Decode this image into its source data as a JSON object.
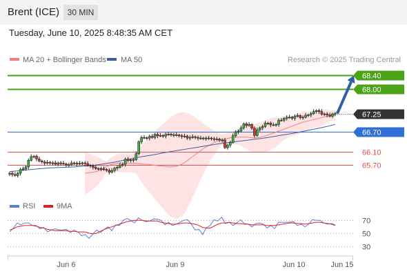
{
  "header": {
    "title": "Brent (ICE)",
    "timeframe": "30 MIN"
  },
  "datetime": "Tuesday, June 10, 2025 8:48:35 AM CET",
  "credit": "Research © 2025 Trading Central",
  "legend": {
    "ma20": {
      "label": "MA 20 + Bollinger Bands",
      "color": "#f08080"
    },
    "ma50": {
      "label": "MA 50",
      "color": "#3a5fa0"
    }
  },
  "rsi_legend": {
    "rsi": {
      "label": "RSI",
      "color": "#5b7fd6"
    },
    "ma9": {
      "label": "9MA",
      "color": "#e02020"
    }
  },
  "levels": [
    {
      "value": 68.4,
      "label": "68.40",
      "kind": "target",
      "color": "#4ca319"
    },
    {
      "value": 68.0,
      "label": "68.00",
      "kind": "target",
      "color": "#4ca319"
    },
    {
      "value": 67.25,
      "label": "67.25",
      "kind": "last",
      "color": "#333333"
    },
    {
      "value": 66.7,
      "label": "66.70",
      "kind": "pivot",
      "color": "#2f6fd6"
    },
    {
      "value": 66.1,
      "label": "66.10",
      "kind": "support",
      "color": "#e05050"
    },
    {
      "value": 65.7,
      "label": "65.70",
      "kind": "support",
      "color": "#e05050"
    }
  ],
  "chart_data": {
    "type": "candlestick",
    "price_axis_range": [
      64.95,
      68.7
    ],
    "x_labels": [
      "Jun 6",
      "Jun 9",
      "Jun 10",
      "Jun 15"
    ],
    "close": [
      65.45,
      65.41,
      65.38,
      65.45,
      65.56,
      65.58,
      65.64,
      65.84,
      65.95,
      65.96,
      65.88,
      65.82,
      65.79,
      65.75,
      65.78,
      65.76,
      65.76,
      65.72,
      65.76,
      65.75,
      65.73,
      65.7,
      65.71,
      65.76,
      65.75,
      65.73,
      65.75,
      65.76,
      65.74,
      65.69,
      65.67,
      65.63,
      65.59,
      65.59,
      65.58,
      65.56,
      65.54,
      65.48,
      65.53,
      65.6,
      65.63,
      65.7,
      65.72,
      65.87,
      65.83,
      65.85,
      65.86,
      66.04,
      66.4,
      66.53,
      66.52,
      66.51,
      66.56,
      66.53,
      66.62,
      66.58,
      66.59,
      66.57,
      66.62,
      66.63,
      66.61,
      66.61,
      66.6,
      66.58,
      66.56,
      66.57,
      66.51,
      66.53,
      66.55,
      66.53,
      66.51,
      66.5,
      66.51,
      66.5,
      66.51,
      66.49,
      66.48,
      66.48,
      66.45,
      66.45,
      66.22,
      66.3,
      66.38,
      66.58,
      66.7,
      66.72,
      66.82,
      66.94,
      66.89,
      66.92,
      66.81,
      66.59,
      66.76,
      66.82,
      66.86,
      66.96,
      66.96,
      66.91,
      66.91,
      66.92,
      67.05,
      67.05,
      67.11,
      67.14,
      67.14,
      67.11,
      67.17,
      67.19,
      67.13,
      67.14,
      67.2,
      67.21,
      67.25,
      67.31,
      67.34,
      67.31,
      67.23,
      67.24,
      67.21,
      67.17,
      67.24,
      67.25
    ],
    "ma20": [
      65.45,
      65.46,
      65.47,
      65.48,
      65.5,
      65.52,
      65.55,
      65.6,
      65.65,
      65.69,
      65.72,
      65.74,
      65.75,
      65.76,
      65.76,
      65.76,
      65.76,
      65.75,
      65.75,
      65.75,
      65.74,
      65.73,
      65.72,
      65.72,
      65.71,
      65.7,
      65.69,
      65.68,
      65.67,
      65.66,
      65.65,
      65.64,
      65.64,
      65.65,
      65.66,
      65.69,
      65.72,
      65.77,
      65.83,
      65.89,
      65.95,
      66.01,
      66.07,
      66.13,
      66.19,
      66.24,
      66.29,
      66.33,
      66.37,
      66.41,
      66.44,
      66.46,
      66.48,
      66.5,
      66.52,
      66.53,
      66.54,
      66.54,
      66.54,
      66.54,
      66.54,
      66.53,
      66.52,
      66.51,
      66.52,
      66.53,
      66.55,
      66.57,
      66.6,
      66.63,
      66.66,
      66.69,
      66.72,
      66.75,
      66.78,
      66.81,
      66.84,
      66.87,
      66.9,
      66.93,
      66.96,
      66.99,
      67.01,
      67.03,
      67.05,
      67.07,
      67.09,
      67.11,
      67.13,
      67.15,
      67.17,
      67.18,
      67.19,
      67.2
    ],
    "ma50": [
      65.5,
      65.52,
      65.55,
      65.57,
      65.59,
      65.61,
      65.62,
      65.63,
      65.64,
      65.66,
      65.68,
      65.71,
      65.75,
      65.79,
      65.84,
      65.89,
      65.94,
      65.98,
      66.02,
      66.07,
      66.11,
      66.15,
      66.19,
      66.23,
      66.27,
      66.31,
      66.35,
      66.38,
      66.41,
      66.44,
      66.47,
      66.5,
      66.54,
      66.58,
      66.62,
      66.66,
      66.71,
      66.76,
      66.81,
      66.86,
      66.92
    ],
    "rsi_axis": [
      30,
      50,
      70
    ],
    "rsi": [
      52,
      58,
      66,
      63,
      66,
      66,
      62,
      62,
      57,
      59,
      52,
      55,
      57,
      55,
      55,
      56,
      51,
      55,
      52,
      46,
      48,
      42,
      49,
      55,
      51,
      56,
      60,
      54,
      63,
      62,
      70,
      73,
      70,
      66,
      74,
      70,
      68,
      69,
      72,
      72,
      70,
      63,
      67,
      62,
      64,
      67,
      70,
      71,
      64,
      55,
      56,
      48,
      59,
      62,
      71,
      69,
      75,
      65,
      67,
      62,
      66,
      71,
      65,
      64,
      60,
      65,
      66,
      64,
      58,
      62,
      57,
      67,
      67,
      67,
      67,
      68,
      62,
      64,
      60,
      64,
      71,
      70,
      70,
      66,
      64,
      65,
      63
    ],
    "rsi_ma9": [
      55,
      57,
      60,
      61,
      62,
      62,
      62,
      61,
      59,
      58,
      56,
      55,
      54,
      54,
      54,
      54,
      53,
      53,
      52,
      52,
      52,
      50,
      49,
      50,
      53,
      56,
      58,
      60,
      62,
      64,
      66,
      68,
      69,
      70,
      70,
      70,
      69,
      69,
      69,
      69,
      67,
      66,
      65,
      64,
      64,
      65,
      66,
      66,
      65,
      64,
      62,
      59,
      58,
      58,
      61,
      64,
      66,
      66,
      67,
      66,
      65,
      65,
      64,
      64,
      63,
      63,
      63,
      63,
      62,
      62,
      62,
      63,
      64,
      65,
      66,
      66,
      65,
      65,
      64,
      65,
      66,
      67,
      67,
      66,
      65,
      64,
      62
    ],
    "arrow": {
      "from": 67.25,
      "to": 68.4
    }
  }
}
